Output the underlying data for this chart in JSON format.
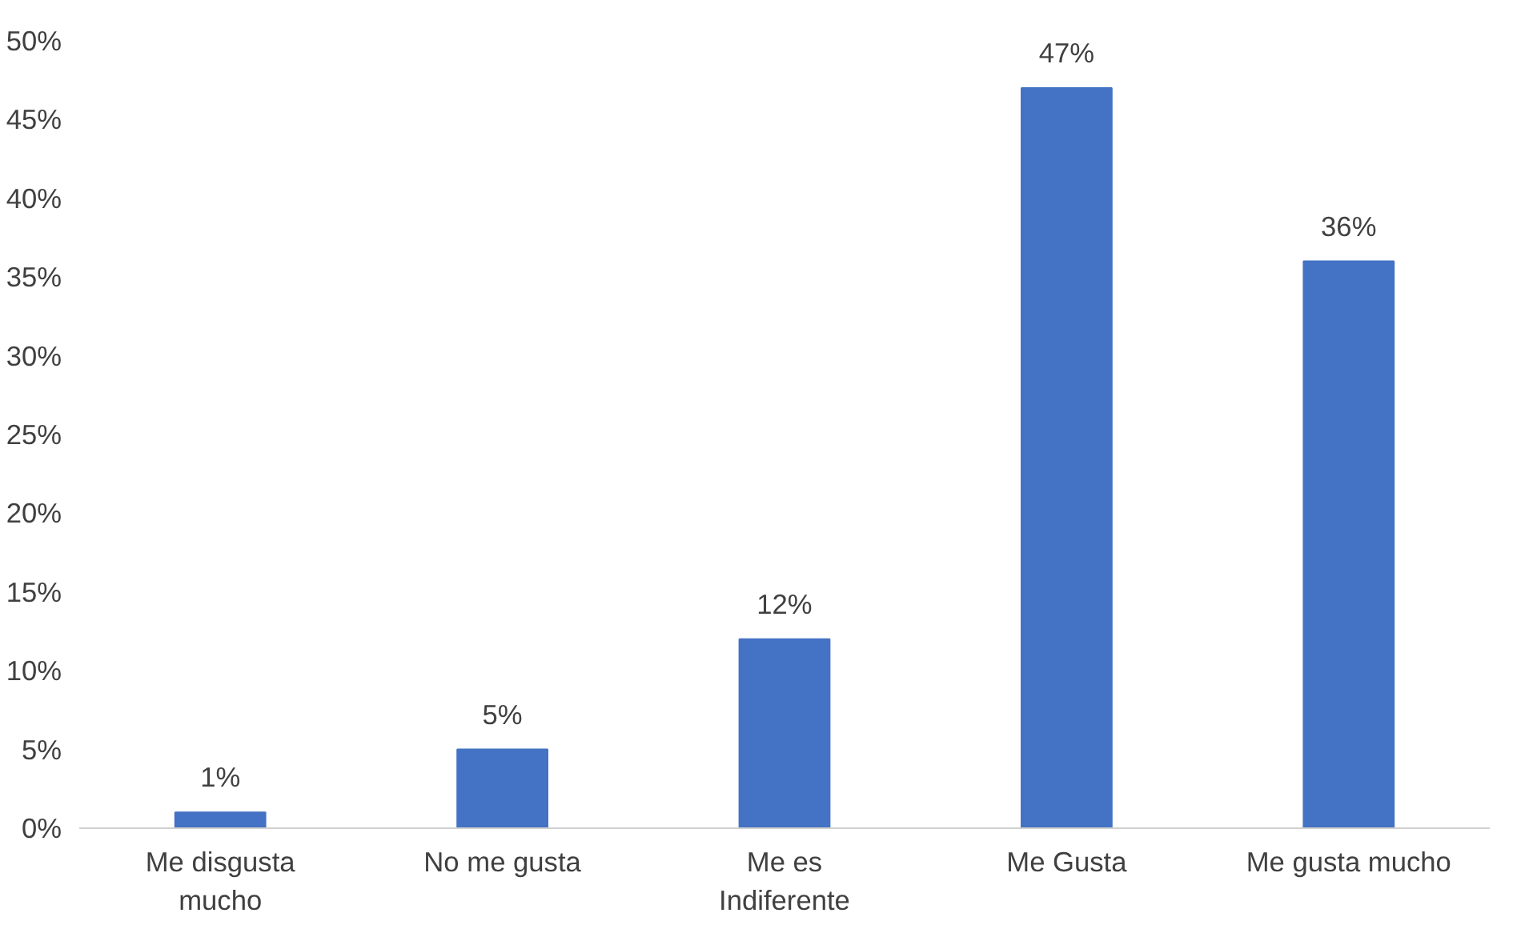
{
  "chart_data": {
    "type": "bar",
    "categories": [
      "Me disgusta mucho",
      "No me gusta",
      "Me es Indiferente",
      "Me Gusta",
      "Me gusta mucho"
    ],
    "values": [
      1,
      5,
      12,
      47,
      36
    ],
    "value_labels": [
      "1%",
      "5%",
      "12%",
      "47%",
      "36%"
    ],
    "color": "#4472c4",
    "ylim": [
      0,
      50
    ],
    "yticks": [
      {
        "value": 0,
        "label": "0%"
      },
      {
        "value": 5,
        "label": "5%"
      },
      {
        "value": 10,
        "label": "10%"
      },
      {
        "value": 15,
        "label": "15%"
      },
      {
        "value": 20,
        "label": "20%"
      },
      {
        "value": 25,
        "label": "25%"
      },
      {
        "value": 30,
        "label": "30%"
      },
      {
        "value": 35,
        "label": "35%"
      },
      {
        "value": 40,
        "label": "40%"
      },
      {
        "value": 45,
        "label": "45%"
      },
      {
        "value": 50,
        "label": "50%"
      }
    ],
    "grid": false
  }
}
